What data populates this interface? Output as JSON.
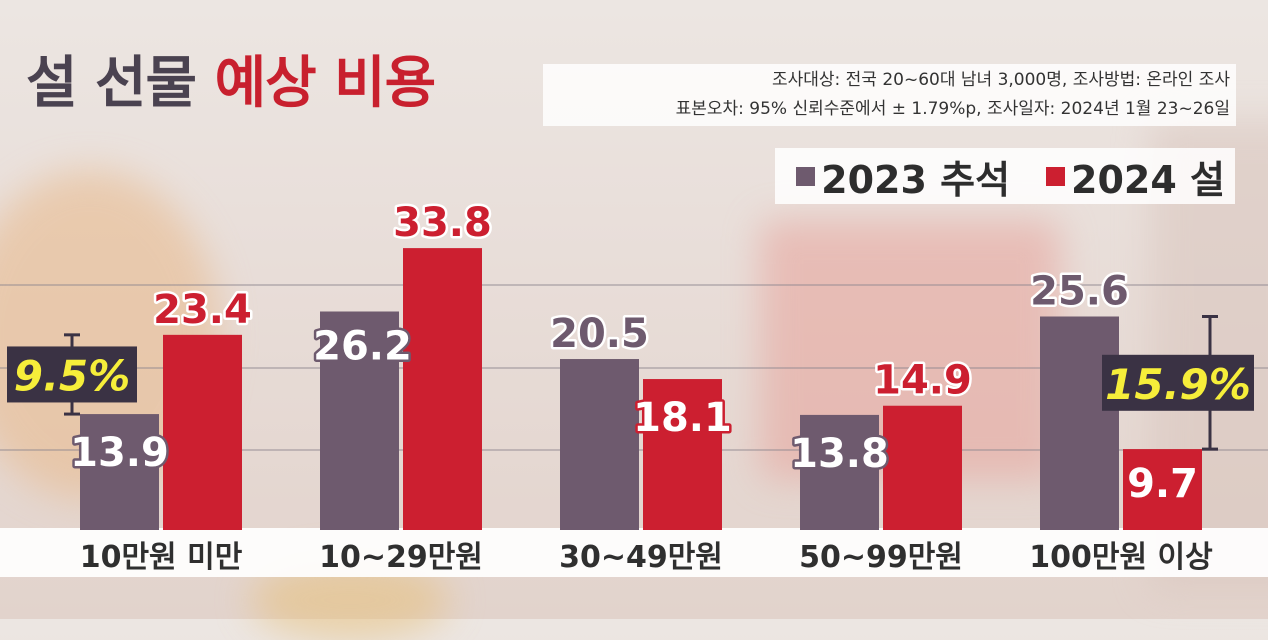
{
  "title_main": "설 선물",
  "title_accent": "예상 비용",
  "notes": {
    "line1": "조사대상: 전국 20~60대 남녀 3,000명, 조사방법: 온라인 조사",
    "line2": "표본오차: 95% 신뢰수준에서 ± 1.79%p, 조사일자: 2024년 1월 23~26일"
  },
  "colors": {
    "series_2023": "#6e5a6e",
    "series_2024": "#cc1f30",
    "callout_bg": "#3a3244",
    "callout_text": "#f6ee3a"
  },
  "chart_data": {
    "type": "bar",
    "categories": [
      "10만원 미만",
      "10~29만원",
      "30~49만원",
      "50~99만원",
      "100만원 이상"
    ],
    "series": [
      {
        "name": "2023 추석",
        "values": [
          13.9,
          26.2,
          20.5,
          13.8,
          25.6
        ]
      },
      {
        "name": "2024 설",
        "values": [
          23.4,
          33.8,
          18.1,
          14.9,
          9.7
        ]
      }
    ],
    "value_labels": {
      "2023": [
        "13.9",
        "26.2",
        "20.5",
        "13.8",
        "25.6"
      ],
      "2024": [
        "23.4",
        "33.8",
        "18.1",
        "14.9",
        "9.7"
      ]
    },
    "annotations": [
      {
        "category": "10만원 미만",
        "text": "9.5%"
      },
      {
        "category": "100만원 이상",
        "text": "15.9%"
      }
    ],
    "legend_position": "top-right",
    "grid": true
  }
}
